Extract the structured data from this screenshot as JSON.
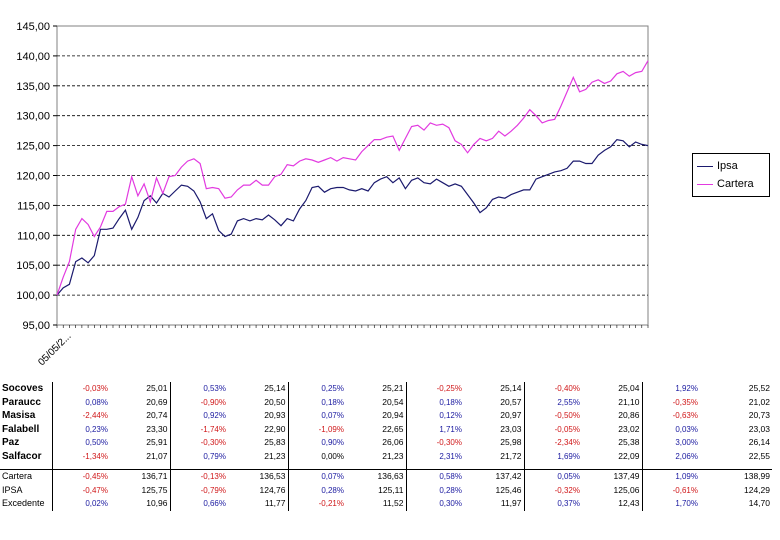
{
  "chart_data": {
    "type": "line",
    "ylim": [
      95,
      145
    ],
    "yticks": [
      "95,00",
      "100,00",
      "105,00",
      "110,00",
      "115,00",
      "120,00",
      "125,00",
      "130,00",
      "135,00",
      "140,00",
      "145,00"
    ],
    "x_first_label": "05/05/2...",
    "grid": "horizontal dashed",
    "legend_position": "right",
    "series": [
      {
        "name": "Ipsa",
        "color": "#1b1a6e",
        "values": [
          100.0,
          101.2,
          101.8,
          105.6,
          106.2,
          105.4,
          106.6,
          111.0,
          111.0,
          111.2,
          112.8,
          114.2,
          111.0,
          113.0,
          115.8,
          116.6,
          115.4,
          117.0,
          116.4,
          117.4,
          118.4,
          118.2,
          117.4,
          115.6,
          112.8,
          113.6,
          110.8,
          109.8,
          110.2,
          112.4,
          112.8,
          112.4,
          112.8,
          112.6,
          113.4,
          112.6,
          111.6,
          112.8,
          112.4,
          114.4,
          115.8,
          118.0,
          118.2,
          117.2,
          117.8,
          118.0,
          118.0,
          117.6,
          117.4,
          117.8,
          117.4,
          118.8,
          119.4,
          119.8,
          118.8,
          119.6,
          117.8,
          119.2,
          119.6,
          118.8,
          118.6,
          119.4,
          118.8,
          118.2,
          118.6,
          118.2,
          116.8,
          115.4,
          113.8,
          114.6,
          116.0,
          116.4,
          116.2,
          116.8,
          117.2,
          117.6,
          117.6,
          119.4,
          119.8,
          120.2,
          120.6,
          120.8,
          121.2,
          122.4,
          122.4,
          122.0,
          122.0,
          123.4,
          124.2,
          124.8,
          126.0,
          125.8,
          124.8,
          125.6,
          125.2,
          125.0
        ]
      },
      {
        "name": "Cartera",
        "color": "#e23ae0",
        "values": [
          100.0,
          103.0,
          105.6,
          111.0,
          112.8,
          111.8,
          109.8,
          111.4,
          114.0,
          114.0,
          114.8,
          115.2,
          119.8,
          116.6,
          118.6,
          115.6,
          119.6,
          117.0,
          119.8,
          120.0,
          121.4,
          122.4,
          122.8,
          122.0,
          117.8,
          118.0,
          117.8,
          116.2,
          116.4,
          117.6,
          118.4,
          118.4,
          119.2,
          118.4,
          118.4,
          119.8,
          120.2,
          121.8,
          121.6,
          122.4,
          122.8,
          122.6,
          122.2,
          122.6,
          123.0,
          122.4,
          123.0,
          122.8,
          122.6,
          124.0,
          125.0,
          126.0,
          126.0,
          126.4,
          126.6,
          124.2,
          126.2,
          128.2,
          128.4,
          127.6,
          128.8,
          128.4,
          128.6,
          128.0,
          125.8,
          125.2,
          123.8,
          125.2,
          126.2,
          125.8,
          126.2,
          127.4,
          126.6,
          127.4,
          128.4,
          129.6,
          131.0,
          130.0,
          128.8,
          129.2,
          129.4,
          131.6,
          134.0,
          136.4,
          134.0,
          134.4,
          135.6,
          136.0,
          135.4,
          135.8,
          137.0,
          137.4,
          136.6,
          137.2,
          137.4,
          139.2
        ]
      }
    ]
  },
  "table": {
    "rows": [
      {
        "name": "Socoves",
        "cells": [
          [
            "-0,03%",
            "25,01"
          ],
          [
            "0,53%",
            "25,14"
          ],
          [
            "0,25%",
            "25,21"
          ],
          [
            "-0,25%",
            "25,14"
          ],
          [
            "-0,40%",
            "25,04"
          ],
          [
            "1,92%",
            "25,52"
          ]
        ]
      },
      {
        "name": "Paraucc",
        "cells": [
          [
            "0,08%",
            "20,69"
          ],
          [
            "-0,90%",
            "20,50"
          ],
          [
            "0,18%",
            "20,54"
          ],
          [
            "0,18%",
            "20,57"
          ],
          [
            "2,55%",
            "21,10"
          ],
          [
            "-0,35%",
            "21,02"
          ]
        ]
      },
      {
        "name": "Masisa",
        "cells": [
          [
            "-2,44%",
            "20,74"
          ],
          [
            "0,92%",
            "20,93"
          ],
          [
            "0,07%",
            "20,94"
          ],
          [
            "0,12%",
            "20,97"
          ],
          [
            "-0,50%",
            "20,86"
          ],
          [
            "-0,63%",
            "20,73"
          ]
        ]
      },
      {
        "name": "Falabell",
        "cells": [
          [
            "0,23%",
            "23,30"
          ],
          [
            "-1,74%",
            "22,90"
          ],
          [
            "-1,09%",
            "22,65"
          ],
          [
            "1,71%",
            "23,03"
          ],
          [
            "-0,05%",
            "23,02"
          ],
          [
            "0,03%",
            "23,03"
          ]
        ]
      },
      {
        "name": "Paz",
        "cells": [
          [
            "0,50%",
            "25,91"
          ],
          [
            "-0,30%",
            "25,83"
          ],
          [
            "0,90%",
            "26,06"
          ],
          [
            "-0,30%",
            "25,98"
          ],
          [
            "-2,34%",
            "25,38"
          ],
          [
            "3,00%",
            "26,14"
          ]
        ]
      },
      {
        "name": "Salfacor",
        "cells": [
          [
            "-1,34%",
            "21,07"
          ],
          [
            "0,79%",
            "21,23"
          ],
          [
            "0,00%",
            "21,23"
          ],
          [
            "2,31%",
            "21,72"
          ],
          [
            "1,69%",
            "22,09"
          ],
          [
            "2,06%",
            "22,55"
          ]
        ]
      }
    ],
    "summary": [
      {
        "name": "Cartera",
        "cells": [
          [
            "-0,45%",
            "136,71"
          ],
          [
            "-0,13%",
            "136,53"
          ],
          [
            "0,07%",
            "136,63"
          ],
          [
            "0,58%",
            "137,42"
          ],
          [
            "0,05%",
            "137,49"
          ],
          [
            "1,09%",
            "138,99"
          ]
        ]
      },
      {
        "name": "IPSA",
        "cells": [
          [
            "-0,47%",
            "125,75"
          ],
          [
            "-0,79%",
            "124,76"
          ],
          [
            "0,28%",
            "125,11"
          ],
          [
            "0,28%",
            "125,46"
          ],
          [
            "-0,32%",
            "125,06"
          ],
          [
            "-0,61%",
            "124,29"
          ]
        ]
      },
      {
        "name": "Excedente",
        "cells": [
          [
            "0,02%",
            "10,96"
          ],
          [
            "0,66%",
            "11,77"
          ],
          [
            "-0,21%",
            "11,52"
          ],
          [
            "0,30%",
            "11,97"
          ],
          [
            "0,37%",
            "12,43"
          ],
          [
            "1,70%",
            "14,70"
          ]
        ]
      }
    ]
  }
}
